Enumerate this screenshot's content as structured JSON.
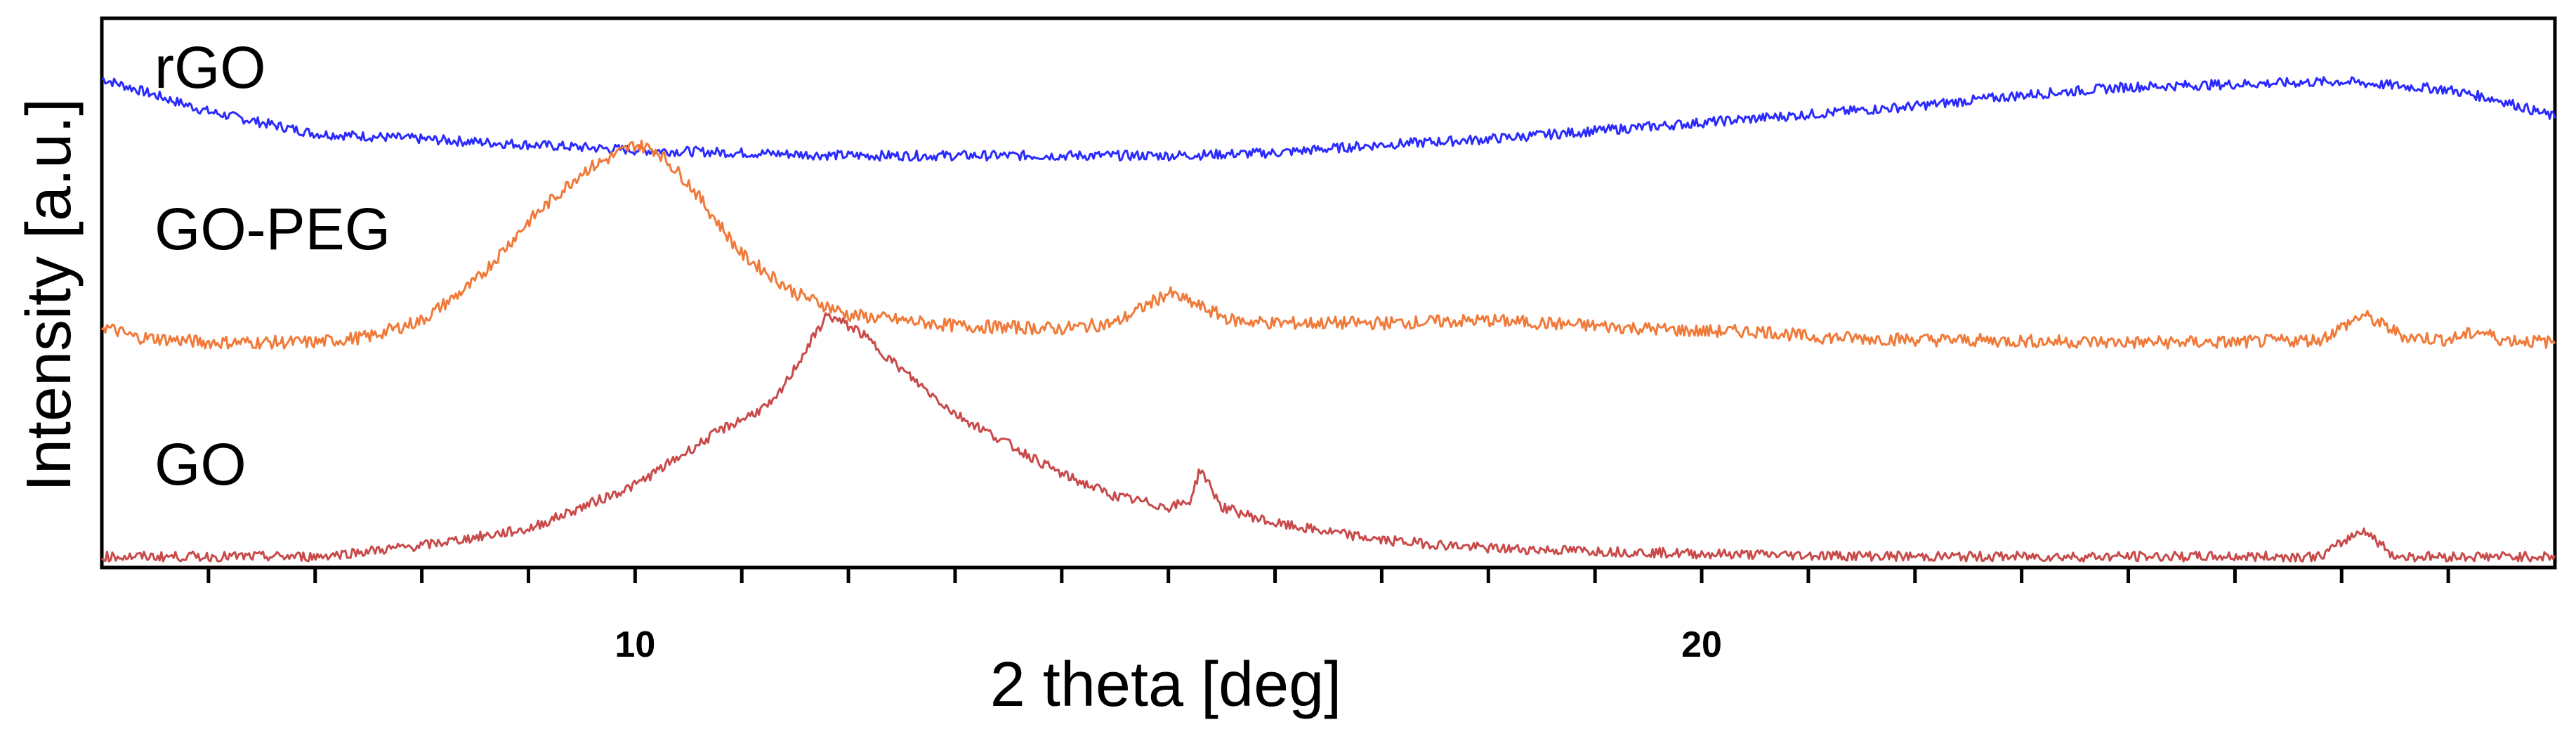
{
  "chart_data": {
    "type": "line",
    "xlabel": "2 theta [deg]",
    "ylabel": "Intensity [a.u.]",
    "xlim": [
      5,
      28
    ],
    "x_ticks": [
      10,
      20
    ],
    "x_ticks_minor_step": 1,
    "grid": false,
    "legend": "none (series labelled directly at left)",
    "series": [
      {
        "name": "rGO",
        "color": "#2b2bff",
        "offset": 0.74,
        "points": [
          [
            5,
            0.89
          ],
          [
            5.5,
            0.86
          ],
          [
            6,
            0.83
          ],
          [
            6.5,
            0.81
          ],
          [
            7,
            0.79
          ],
          [
            8,
            0.78
          ],
          [
            9,
            0.77
          ],
          [
            10,
            0.76
          ],
          [
            11,
            0.755
          ],
          [
            12,
            0.75
          ],
          [
            13,
            0.75
          ],
          [
            14,
            0.75
          ],
          [
            15,
            0.75
          ],
          [
            16,
            0.755
          ],
          [
            17,
            0.77
          ],
          [
            18,
            0.78
          ],
          [
            19,
            0.795
          ],
          [
            20,
            0.81
          ],
          [
            21,
            0.825
          ],
          [
            22,
            0.84
          ],
          [
            23,
            0.86
          ],
          [
            24,
            0.875
          ],
          [
            25,
            0.88
          ],
          [
            26,
            0.885
          ],
          [
            27,
            0.87
          ],
          [
            27.5,
            0.85
          ],
          [
            28,
            0.82
          ]
        ]
      },
      {
        "name": "GO-PEG",
        "color": "#f07a3a",
        "offset": 0.41,
        "points": [
          [
            5,
            0.44
          ],
          [
            5.3,
            0.42
          ],
          [
            6,
            0.41
          ],
          [
            7,
            0.41
          ],
          [
            7.5,
            0.42
          ],
          [
            8,
            0.45
          ],
          [
            8.5,
            0.52
          ],
          [
            9,
            0.63
          ],
          [
            9.5,
            0.72
          ],
          [
            10,
            0.77
          ],
          [
            10.2,
            0.76
          ],
          [
            10.5,
            0.7
          ],
          [
            11,
            0.57
          ],
          [
            11.5,
            0.5
          ],
          [
            12,
            0.46
          ],
          [
            13,
            0.44
          ],
          [
            14,
            0.435
          ],
          [
            14.5,
            0.445
          ],
          [
            15,
            0.5
          ],
          [
            15.3,
            0.475
          ],
          [
            15.6,
            0.45
          ],
          [
            16,
            0.445
          ],
          [
            17,
            0.445
          ],
          [
            18,
            0.45
          ],
          [
            19,
            0.44
          ],
          [
            20,
            0.43
          ],
          [
            20.6,
            0.43
          ],
          [
            21,
            0.42
          ],
          [
            22,
            0.415
          ],
          [
            24,
            0.41
          ],
          [
            25,
            0.41
          ],
          [
            25.8,
            0.415
          ],
          [
            26.2,
            0.46
          ],
          [
            26.6,
            0.42
          ],
          [
            27,
            0.415
          ],
          [
            27.3,
            0.43
          ],
          [
            27.5,
            0.415
          ],
          [
            28,
            0.41
          ]
        ]
      },
      {
        "name": "GO",
        "color": "#c84a4a",
        "offset": 0.02,
        "points": [
          [
            5,
            0.02
          ],
          [
            7,
            0.02
          ],
          [
            8,
            0.04
          ],
          [
            9,
            0.07
          ],
          [
            10,
            0.15
          ],
          [
            10.8,
            0.25
          ],
          [
            11.3,
            0.3
          ],
          [
            11.8,
            0.46
          ],
          [
            12.1,
            0.43
          ],
          [
            12.5,
            0.36
          ],
          [
            13,
            0.28
          ],
          [
            14,
            0.17
          ],
          [
            14.5,
            0.13
          ],
          [
            15,
            0.11
          ],
          [
            15.2,
            0.12
          ],
          [
            15.3,
            0.18
          ],
          [
            15.5,
            0.11
          ],
          [
            16,
            0.08
          ],
          [
            17,
            0.05
          ],
          [
            18,
            0.035
          ],
          [
            19,
            0.03
          ],
          [
            20,
            0.025
          ],
          [
            22,
            0.02
          ],
          [
            25,
            0.02
          ],
          [
            25.8,
            0.02
          ],
          [
            26.2,
            0.07
          ],
          [
            26.5,
            0.02
          ],
          [
            28,
            0.02
          ]
        ]
      }
    ]
  }
}
